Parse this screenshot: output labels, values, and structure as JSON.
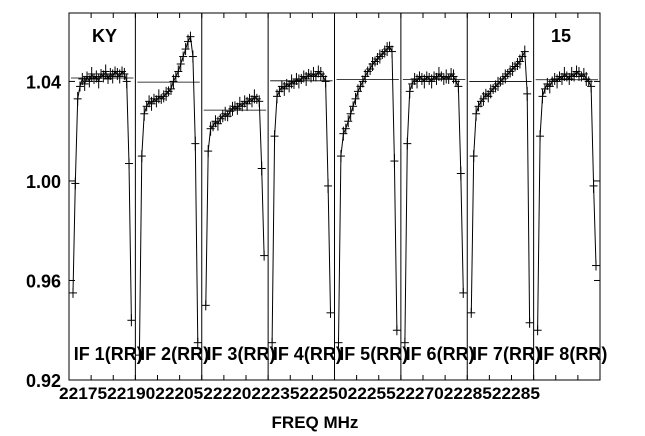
{
  "chart_data": {
    "type": "line",
    "title": "",
    "xlabel": "FREQ MHz",
    "ylabel": "",
    "ylim": [
      0.92,
      1.0675
    ],
    "yticks": [
      "0.92",
      "0.96",
      "1.00",
      "1.04"
    ],
    "xticks_text": "22175221902220522220222352225022255222702228522285",
    "corner_labels": {
      "left": "KY",
      "right": "15"
    },
    "panels": [
      {
        "label": "IF 1(RR)",
        "values": [
          0.955,
          0.999,
          1.033,
          1.038,
          1.041,
          1.039,
          1.042,
          1.04,
          1.043,
          1.041,
          1.042,
          1.04,
          1.043,
          1.042,
          1.044,
          1.041,
          1.043,
          1.042,
          1.044,
          1.043,
          1.042,
          1.044,
          1.043,
          1.04,
          1.007,
          0.944
        ]
      },
      {
        "label": "IF 2(RR)",
        "values": [
          0.93,
          1.01,
          1.027,
          1.03,
          1.032,
          1.031,
          1.033,
          1.032,
          1.034,
          1.033,
          1.034,
          1.035,
          1.036,
          1.037,
          1.04,
          1.042,
          1.044,
          1.047,
          1.05,
          1.053,
          1.056,
          1.058,
          1.05,
          1.015,
          0.935
        ]
      },
      {
        "label": "IF 3(RR)",
        "values": [
          0.95,
          1.012,
          1.021,
          1.022,
          1.024,
          1.023,
          1.025,
          1.026,
          1.027,
          1.026,
          1.028,
          1.029,
          1.03,
          1.029,
          1.031,
          1.03,
          1.032,
          1.031,
          1.033,
          1.032,
          1.034,
          1.033,
          1.032,
          1.005,
          0.97
        ]
      },
      {
        "label": "IF 4(RR)",
        "values": [
          0.935,
          1.018,
          1.034,
          1.036,
          1.038,
          1.037,
          1.039,
          1.038,
          1.04,
          1.039,
          1.041,
          1.04,
          1.041,
          1.042,
          1.041,
          1.043,
          1.042,
          1.043,
          1.042,
          1.044,
          1.043,
          1.042,
          1.04,
          0.998,
          0.947
        ]
      },
      {
        "label": "IF 5(RR)",
        "values": [
          0.935,
          1.01,
          1.019,
          1.021,
          1.024,
          1.027,
          1.03,
          1.033,
          1.036,
          1.038,
          1.04,
          1.042,
          1.044,
          1.045,
          1.047,
          1.048,
          1.049,
          1.05,
          1.051,
          1.052,
          1.053,
          1.054,
          1.052,
          1.008,
          0.94
        ]
      },
      {
        "label": "IF 6(RR)",
        "values": [
          0.935,
          1.015,
          1.036,
          1.039,
          1.041,
          1.04,
          1.042,
          1.041,
          1.04,
          1.042,
          1.041,
          1.04,
          1.042,
          1.041,
          1.043,
          1.042,
          1.041,
          1.042,
          1.041,
          1.043,
          1.042,
          1.04,
          1.038,
          1.003,
          0.955
        ]
      },
      {
        "label": "IF 7(RR)",
        "values": [
          0.947,
          1.01,
          1.027,
          1.03,
          1.032,
          1.033,
          1.035,
          1.034,
          1.036,
          1.037,
          1.038,
          1.039,
          1.04,
          1.041,
          1.042,
          1.043,
          1.044,
          1.045,
          1.046,
          1.047,
          1.048,
          1.05,
          1.052,
          1.035,
          0.943
        ]
      },
      {
        "label": "IF 8(RR)",
        "values": [
          0.94,
          1.018,
          1.034,
          1.037,
          1.039,
          1.038,
          1.04,
          1.041,
          1.04,
          1.042,
          1.041,
          1.043,
          1.042,
          1.041,
          1.043,
          1.042,
          1.044,
          1.043,
          1.042,
          1.043,
          1.041,
          1.04,
          1.038,
          0.998,
          0.966
        ]
      }
    ]
  }
}
